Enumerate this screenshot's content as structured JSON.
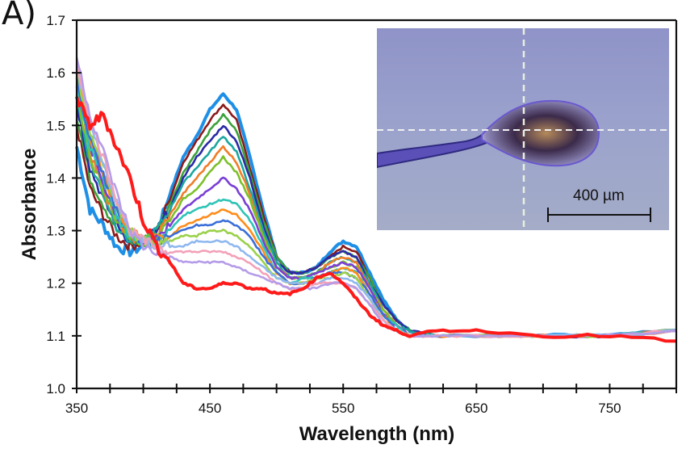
{
  "panel_label": "A)",
  "chart_data": {
    "type": "line",
    "title": "",
    "xlabel": "Wavelength (nm)",
    "ylabel": "Absorbance",
    "xlim": [
      350,
      800
    ],
    "ylim": [
      1.0,
      1.7
    ],
    "x_ticks": [
      350,
      450,
      550,
      650,
      750
    ],
    "x_minor_step": 25,
    "y_ticks": [
      1.0,
      1.1,
      1.2,
      1.3,
      1.4,
      1.5,
      1.6,
      1.7
    ],
    "y_tick_labels": [
      "1.0",
      "1.1",
      "1.2",
      "1.3",
      "1.4",
      "1.5",
      "1.6",
      "1.7"
    ],
    "grid": false,
    "legend": "none",
    "x": [
      350,
      360,
      370,
      380,
      390,
      400,
      410,
      420,
      430,
      440,
      450,
      460,
      470,
      480,
      490,
      500,
      510,
      520,
      530,
      540,
      550,
      560,
      570,
      580,
      590,
      600,
      620,
      650,
      700,
      750,
      800
    ],
    "series": [
      {
        "name": "top (blue)",
        "color": "#1e8fe6",
        "values": [
          1.46,
          1.34,
          1.31,
          1.27,
          1.26,
          1.27,
          1.3,
          1.37,
          1.44,
          1.48,
          1.53,
          1.56,
          1.53,
          1.44,
          1.34,
          1.25,
          1.22,
          1.22,
          1.23,
          1.26,
          1.28,
          1.27,
          1.22,
          1.17,
          1.13,
          1.11,
          1.1,
          1.1,
          1.1,
          1.1,
          1.11
        ]
      },
      {
        "name": "dark red",
        "color": "#8b1a1a",
        "values": [
          1.5,
          1.38,
          1.33,
          1.29,
          1.27,
          1.28,
          1.3,
          1.36,
          1.43,
          1.47,
          1.51,
          1.54,
          1.51,
          1.42,
          1.33,
          1.25,
          1.22,
          1.22,
          1.23,
          1.25,
          1.27,
          1.26,
          1.21,
          1.16,
          1.13,
          1.11,
          1.1,
          1.1,
          1.1,
          1.1,
          1.11
        ]
      },
      {
        "name": "green",
        "color": "#3ca23c",
        "values": [
          1.52,
          1.4,
          1.35,
          1.3,
          1.28,
          1.28,
          1.3,
          1.35,
          1.41,
          1.45,
          1.49,
          1.52,
          1.49,
          1.41,
          1.32,
          1.25,
          1.22,
          1.22,
          1.23,
          1.25,
          1.26,
          1.25,
          1.21,
          1.16,
          1.13,
          1.11,
          1.1,
          1.1,
          1.1,
          1.1,
          1.11
        ]
      },
      {
        "name": "navy",
        "color": "#2a2aa8",
        "values": [
          1.54,
          1.42,
          1.36,
          1.31,
          1.28,
          1.28,
          1.3,
          1.34,
          1.4,
          1.44,
          1.47,
          1.5,
          1.47,
          1.4,
          1.31,
          1.24,
          1.22,
          1.22,
          1.23,
          1.25,
          1.26,
          1.25,
          1.2,
          1.16,
          1.13,
          1.11,
          1.1,
          1.1,
          1.1,
          1.1,
          1.11
        ]
      },
      {
        "name": "teal",
        "color": "#1aa7a0",
        "values": [
          1.55,
          1.43,
          1.37,
          1.31,
          1.28,
          1.28,
          1.3,
          1.34,
          1.39,
          1.42,
          1.45,
          1.48,
          1.45,
          1.38,
          1.3,
          1.24,
          1.21,
          1.21,
          1.22,
          1.24,
          1.25,
          1.24,
          1.2,
          1.15,
          1.12,
          1.11,
          1.1,
          1.1,
          1.1,
          1.1,
          1.11
        ]
      },
      {
        "name": "orange",
        "color": "#f07d28",
        "values": [
          1.6,
          1.45,
          1.38,
          1.32,
          1.29,
          1.28,
          1.29,
          1.33,
          1.37,
          1.4,
          1.43,
          1.46,
          1.43,
          1.37,
          1.29,
          1.23,
          1.21,
          1.21,
          1.22,
          1.24,
          1.25,
          1.24,
          1.19,
          1.15,
          1.12,
          1.1,
          1.1,
          1.1,
          1.1,
          1.1,
          1.11
        ]
      },
      {
        "name": "olive green",
        "color": "#7cc02a",
        "values": [
          1.56,
          1.44,
          1.38,
          1.32,
          1.29,
          1.28,
          1.29,
          1.32,
          1.36,
          1.38,
          1.41,
          1.44,
          1.41,
          1.36,
          1.29,
          1.23,
          1.21,
          1.21,
          1.22,
          1.23,
          1.24,
          1.23,
          1.19,
          1.15,
          1.12,
          1.1,
          1.1,
          1.1,
          1.1,
          1.1,
          1.11
        ]
      },
      {
        "name": "purple",
        "color": "#7a3fd6",
        "values": [
          1.58,
          1.46,
          1.39,
          1.33,
          1.29,
          1.28,
          1.29,
          1.31,
          1.34,
          1.36,
          1.38,
          1.4,
          1.38,
          1.34,
          1.28,
          1.23,
          1.21,
          1.21,
          1.22,
          1.23,
          1.24,
          1.23,
          1.19,
          1.14,
          1.12,
          1.1,
          1.1,
          1.1,
          1.1,
          1.1,
          1.11
        ]
      },
      {
        "name": "cyan",
        "color": "#2ec4b6",
        "values": [
          1.57,
          1.46,
          1.4,
          1.33,
          1.29,
          1.28,
          1.28,
          1.3,
          1.33,
          1.34,
          1.35,
          1.36,
          1.35,
          1.32,
          1.27,
          1.22,
          1.2,
          1.21,
          1.21,
          1.22,
          1.23,
          1.22,
          1.18,
          1.14,
          1.12,
          1.1,
          1.1,
          1.1,
          1.1,
          1.1,
          1.11
        ]
      },
      {
        "name": "orange 2",
        "color": "#ff8c1a",
        "values": [
          1.62,
          1.48,
          1.41,
          1.34,
          1.3,
          1.28,
          1.28,
          1.29,
          1.31,
          1.32,
          1.33,
          1.34,
          1.33,
          1.3,
          1.26,
          1.22,
          1.2,
          1.2,
          1.21,
          1.22,
          1.23,
          1.22,
          1.18,
          1.14,
          1.11,
          1.1,
          1.1,
          1.1,
          1.1,
          1.1,
          1.11
        ]
      },
      {
        "name": "blue 2",
        "color": "#3a6fd8",
        "values": [
          1.58,
          1.47,
          1.41,
          1.34,
          1.3,
          1.28,
          1.28,
          1.29,
          1.3,
          1.31,
          1.31,
          1.32,
          1.31,
          1.29,
          1.25,
          1.22,
          1.2,
          1.2,
          1.21,
          1.22,
          1.22,
          1.21,
          1.18,
          1.14,
          1.11,
          1.1,
          1.1,
          1.1,
          1.1,
          1.1,
          1.11
        ]
      },
      {
        "name": "lime",
        "color": "#9ad14a",
        "values": [
          1.6,
          1.49,
          1.42,
          1.35,
          1.3,
          1.28,
          1.27,
          1.28,
          1.29,
          1.29,
          1.3,
          1.3,
          1.29,
          1.27,
          1.24,
          1.21,
          1.2,
          1.2,
          1.21,
          1.21,
          1.22,
          1.21,
          1.17,
          1.13,
          1.11,
          1.1,
          1.1,
          1.1,
          1.1,
          1.1,
          1.11
        ]
      },
      {
        "name": "light blue",
        "color": "#8fb8f0",
        "values": [
          1.61,
          1.5,
          1.43,
          1.35,
          1.3,
          1.28,
          1.27,
          1.27,
          1.27,
          1.28,
          1.28,
          1.28,
          1.27,
          1.25,
          1.23,
          1.21,
          1.2,
          1.2,
          1.2,
          1.21,
          1.21,
          1.2,
          1.17,
          1.13,
          1.11,
          1.1,
          1.1,
          1.1,
          1.1,
          1.1,
          1.11
        ]
      },
      {
        "name": "pink",
        "color": "#f2a1b8",
        "values": [
          1.62,
          1.51,
          1.44,
          1.36,
          1.3,
          1.28,
          1.27,
          1.26,
          1.26,
          1.26,
          1.26,
          1.26,
          1.25,
          1.24,
          1.22,
          1.2,
          1.19,
          1.19,
          1.2,
          1.2,
          1.2,
          1.19,
          1.16,
          1.13,
          1.11,
          1.1,
          1.1,
          1.1,
          1.1,
          1.1,
          1.11
        ]
      },
      {
        "name": "lavender",
        "color": "#b49ce8",
        "values": [
          1.63,
          1.52,
          1.45,
          1.37,
          1.3,
          1.27,
          1.26,
          1.25,
          1.24,
          1.24,
          1.24,
          1.24,
          1.23,
          1.22,
          1.21,
          1.2,
          1.19,
          1.19,
          1.19,
          1.2,
          1.2,
          1.19,
          1.16,
          1.12,
          1.11,
          1.1,
          1.1,
          1.1,
          1.1,
          1.1,
          1.11
        ]
      },
      {
        "name": "bottom (red)",
        "color": "#ff1a1a",
        "values": [
          1.55,
          1.5,
          1.52,
          1.46,
          1.4,
          1.32,
          1.27,
          1.24,
          1.2,
          1.19,
          1.19,
          1.2,
          1.2,
          1.19,
          1.19,
          1.18,
          1.18,
          1.19,
          1.21,
          1.22,
          1.2,
          1.17,
          1.14,
          1.12,
          1.11,
          1.1,
          1.11,
          1.11,
          1.1,
          1.1,
          1.09
        ]
      }
    ]
  },
  "inset": {
    "description": "micrograph of droplet with crosshair",
    "scale_bar_label": "400 µm"
  }
}
